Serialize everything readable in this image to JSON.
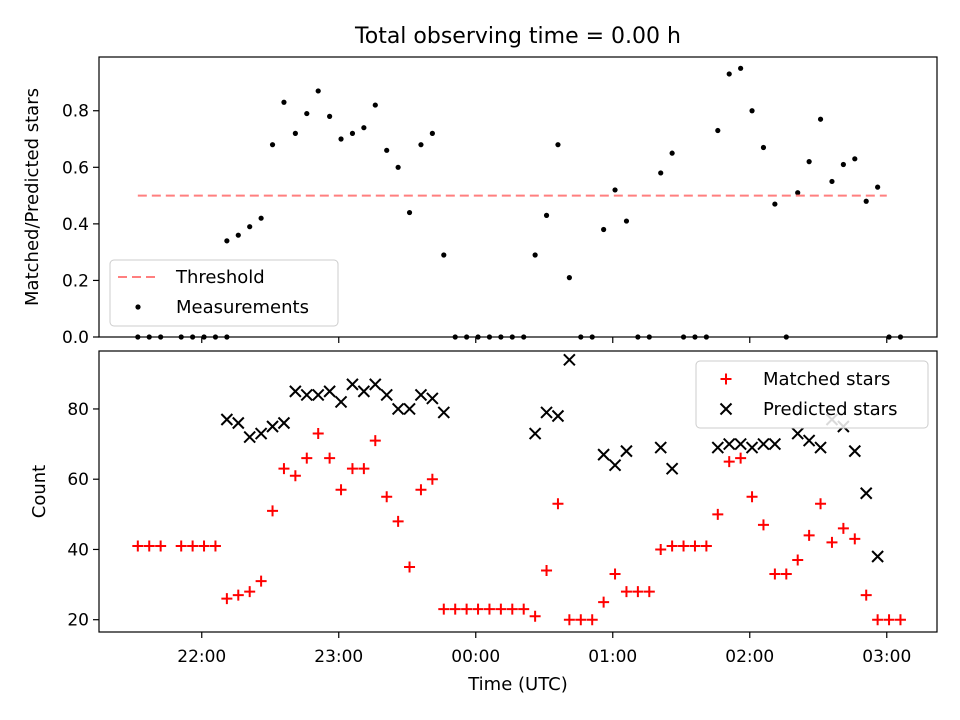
{
  "figure": {
    "title": "Total observing time = 0.00 h"
  },
  "chart_data": [
    {
      "type": "scatter",
      "panel": "top",
      "ylabel": "Matched/Predicted stars",
      "xlabel": "",
      "ylim": [
        0.0,
        0.99
      ],
      "yticks": [
        0.0,
        0.2,
        0.4,
        0.6,
        0.8
      ],
      "ytick_labels": [
        "0.0",
        "0.2",
        "0.4",
        "0.6",
        "0.8"
      ],
      "xlim": [
        "21:15",
        "03:22"
      ],
      "xticks": [
        "22:00",
        "23:00",
        "00:00",
        "01:00",
        "02:00",
        "03:00"
      ],
      "grid": false,
      "legend": {
        "placement": "lower-left",
        "entries": [
          "Threshold",
          "Measurements"
        ]
      },
      "threshold": {
        "name": "Threshold",
        "value": 0.5,
        "x_range": [
          "21:32",
          "03:00"
        ],
        "color": "#ff7f7f",
        "style": "dashed"
      },
      "series": [
        {
          "name": "Measurements",
          "marker": "dot",
          "color": "#000000",
          "points": [
            [
              "21:32",
              0.0
            ],
            [
              "21:37",
              0.0
            ],
            [
              "21:42",
              0.0
            ],
            [
              "21:51",
              0.0
            ],
            [
              "21:56",
              0.0
            ],
            [
              "22:01",
              0.0
            ],
            [
              "22:06",
              0.0
            ],
            [
              "22:11",
              0.0
            ],
            [
              "22:11",
              0.34
            ],
            [
              "22:16",
              0.36
            ],
            [
              "22:21",
              0.39
            ],
            [
              "22:26",
              0.42
            ],
            [
              "22:31",
              0.68
            ],
            [
              "22:36",
              0.83
            ],
            [
              "22:41",
              0.72
            ],
            [
              "22:46",
              0.79
            ],
            [
              "22:51",
              0.87
            ],
            [
              "22:56",
              0.78
            ],
            [
              "23:01",
              0.7
            ],
            [
              "23:06",
              0.72
            ],
            [
              "23:11",
              0.74
            ],
            [
              "23:16",
              0.82
            ],
            [
              "23:21",
              0.66
            ],
            [
              "23:26",
              0.6
            ],
            [
              "23:31",
              0.44
            ],
            [
              "23:36",
              0.68
            ],
            [
              "23:41",
              0.72
            ],
            [
              "23:46",
              0.29
            ],
            [
              "23:51",
              0.0
            ],
            [
              "23:56",
              0.0
            ],
            [
              "00:01",
              0.0
            ],
            [
              "00:06",
              0.0
            ],
            [
              "00:11",
              0.0
            ],
            [
              "00:16",
              0.0
            ],
            [
              "00:21",
              0.0
            ],
            [
              "00:26",
              0.29
            ],
            [
              "00:31",
              0.43
            ],
            [
              "00:36",
              0.68
            ],
            [
              "00:41",
              0.21
            ],
            [
              "00:46",
              0.0
            ],
            [
              "00:51",
              0.0
            ],
            [
              "00:56",
              0.38
            ],
            [
              "01:01",
              0.52
            ],
            [
              "01:06",
              0.41
            ],
            [
              "01:11",
              0.0
            ],
            [
              "01:16",
              0.0
            ],
            [
              "01:21",
              0.58
            ],
            [
              "01:26",
              0.65
            ],
            [
              "01:31",
              0.0
            ],
            [
              "01:36",
              0.0
            ],
            [
              "01:41",
              0.0
            ],
            [
              "01:46",
              0.73
            ],
            [
              "01:51",
              0.93
            ],
            [
              "01:56",
              0.95
            ],
            [
              "02:01",
              0.8
            ],
            [
              "02:06",
              0.67
            ],
            [
              "02:11",
              0.47
            ],
            [
              "02:16",
              0.0
            ],
            [
              "02:21",
              0.51
            ],
            [
              "02:26",
              0.62
            ],
            [
              "02:31",
              0.77
            ],
            [
              "02:36",
              0.55
            ],
            [
              "02:41",
              0.61
            ],
            [
              "02:46",
              0.63
            ],
            [
              "02:51",
              0.48
            ],
            [
              "02:56",
              0.53
            ],
            [
              "03:01",
              0.0
            ],
            [
              "03:06",
              0.0
            ]
          ]
        }
      ]
    },
    {
      "type": "scatter",
      "panel": "bottom",
      "ylabel": "Count",
      "xlabel": "Time (UTC)",
      "ylim": [
        16.5,
        96.5
      ],
      "yticks": [
        20,
        40,
        60,
        80
      ],
      "ytick_labels": [
        "20",
        "40",
        "60",
        "80"
      ],
      "xlim": [
        "21:15",
        "03:22"
      ],
      "xticks": [
        "22:00",
        "23:00",
        "00:00",
        "01:00",
        "02:00",
        "03:00"
      ],
      "xtick_labels": [
        "22:00",
        "23:00",
        "00:00",
        "01:00",
        "02:00",
        "03:00"
      ],
      "grid": false,
      "legend": {
        "placement": "upper-right",
        "entries": [
          "Matched stars",
          "Predicted stars"
        ]
      },
      "series": [
        {
          "name": "Matched stars",
          "marker": "plus",
          "color": "#ff0000",
          "points": [
            [
              "21:32",
              41
            ],
            [
              "21:37",
              41
            ],
            [
              "21:42",
              41
            ],
            [
              "21:51",
              41
            ],
            [
              "21:56",
              41
            ],
            [
              "22:01",
              41
            ],
            [
              "22:06",
              41
            ],
            [
              "22:11",
              26
            ],
            [
              "22:16",
              27
            ],
            [
              "22:21",
              28
            ],
            [
              "22:26",
              31
            ],
            [
              "22:31",
              51
            ],
            [
              "22:36",
              63
            ],
            [
              "22:41",
              61
            ],
            [
              "22:46",
              66
            ],
            [
              "22:51",
              73
            ],
            [
              "22:56",
              66
            ],
            [
              "23:01",
              57
            ],
            [
              "23:06",
              63
            ],
            [
              "23:11",
              63
            ],
            [
              "23:16",
              71
            ],
            [
              "23:21",
              55
            ],
            [
              "23:26",
              48
            ],
            [
              "23:31",
              35
            ],
            [
              "23:36",
              57
            ],
            [
              "23:41",
              60
            ],
            [
              "23:46",
              23
            ],
            [
              "23:51",
              23
            ],
            [
              "23:56",
              23
            ],
            [
              "00:01",
              23
            ],
            [
              "00:06",
              23
            ],
            [
              "00:11",
              23
            ],
            [
              "00:16",
              23
            ],
            [
              "00:21",
              23
            ],
            [
              "00:26",
              21
            ],
            [
              "00:31",
              34
            ],
            [
              "00:36",
              53
            ],
            [
              "00:41",
              20
            ],
            [
              "00:46",
              20
            ],
            [
              "00:51",
              20
            ],
            [
              "00:56",
              25
            ],
            [
              "01:01",
              33
            ],
            [
              "01:06",
              28
            ],
            [
              "01:11",
              28
            ],
            [
              "01:16",
              28
            ],
            [
              "01:21",
              40
            ],
            [
              "01:26",
              41
            ],
            [
              "01:31",
              41
            ],
            [
              "01:36",
              41
            ],
            [
              "01:41",
              41
            ],
            [
              "01:46",
              50
            ],
            [
              "01:51",
              65
            ],
            [
              "01:56",
              66
            ],
            [
              "02:01",
              55
            ],
            [
              "02:06",
              47
            ],
            [
              "02:11",
              33
            ],
            [
              "02:16",
              33
            ],
            [
              "02:21",
              37
            ],
            [
              "02:26",
              44
            ],
            [
              "02:31",
              53
            ],
            [
              "02:36",
              42
            ],
            [
              "02:41",
              46
            ],
            [
              "02:46",
              43
            ],
            [
              "02:51",
              27
            ],
            [
              "02:56",
              20
            ],
            [
              "03:01",
              20
            ],
            [
              "03:06",
              20
            ]
          ]
        },
        {
          "name": "Predicted stars",
          "marker": "x",
          "color": "#000000",
          "points": [
            [
              "22:11",
              77
            ],
            [
              "22:16",
              76
            ],
            [
              "22:21",
              72
            ],
            [
              "22:26",
              73
            ],
            [
              "22:31",
              75
            ],
            [
              "22:36",
              76
            ],
            [
              "22:41",
              85
            ],
            [
              "22:46",
              84
            ],
            [
              "22:51",
              84
            ],
            [
              "22:56",
              85
            ],
            [
              "23:01",
              82
            ],
            [
              "23:06",
              87
            ],
            [
              "23:11",
              85
            ],
            [
              "23:16",
              87
            ],
            [
              "23:21",
              84
            ],
            [
              "23:26",
              80
            ],
            [
              "23:31",
              80
            ],
            [
              "23:36",
              84
            ],
            [
              "23:41",
              83
            ],
            [
              "23:46",
              79
            ],
            [
              "00:26",
              73
            ],
            [
              "00:31",
              79
            ],
            [
              "00:36",
              78
            ],
            [
              "00:41",
              94
            ],
            [
              "00:56",
              67
            ],
            [
              "01:01",
              64
            ],
            [
              "01:06",
              68
            ],
            [
              "01:21",
              69
            ],
            [
              "01:26",
              63
            ],
            [
              "01:46",
              69
            ],
            [
              "01:51",
              70
            ],
            [
              "01:56",
              70
            ],
            [
              "02:01",
              69
            ],
            [
              "02:06",
              70
            ],
            [
              "02:11",
              70
            ],
            [
              "02:21",
              73
            ],
            [
              "02:26",
              71
            ],
            [
              "02:31",
              69
            ],
            [
              "02:36",
              77
            ],
            [
              "02:41",
              75
            ],
            [
              "02:46",
              68
            ],
            [
              "02:51",
              56
            ],
            [
              "02:56",
              38
            ]
          ]
        }
      ]
    }
  ]
}
